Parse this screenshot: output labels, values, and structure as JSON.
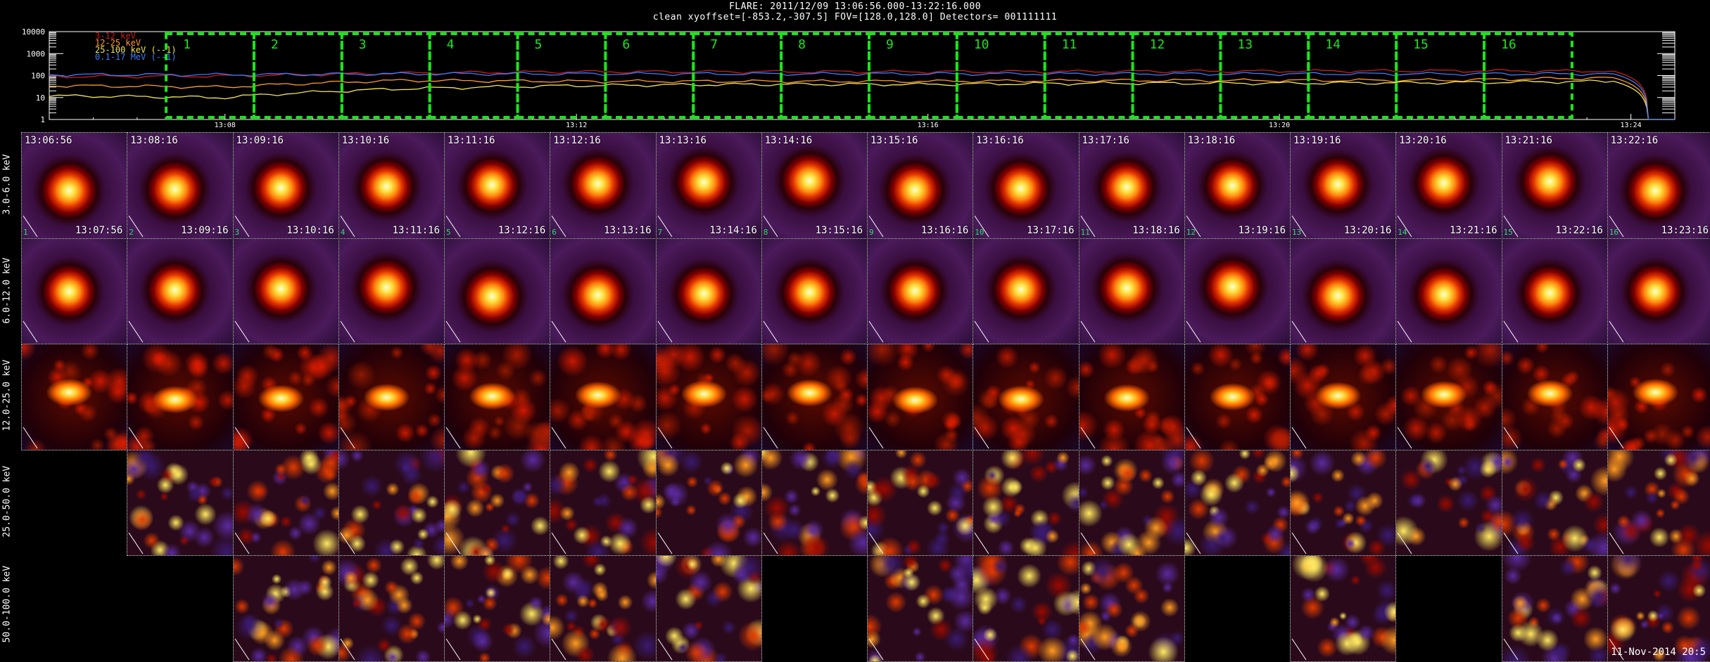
{
  "header": {
    "title": "FLARE: 2011/12/09 13:06:56.000-13:22:16.000",
    "subtitle": "clean   xyoffset=[-853.2,-307.5]   FOV=[128.0,128.0]   Detectors= 001111111"
  },
  "chart_data": {
    "type": "line",
    "title": "",
    "yscale": "log",
    "y_ticks": [
      "10000",
      "1000",
      "100",
      "10",
      "1"
    ],
    "x_ticks": [
      "13:08",
      "13:12",
      "13:16",
      "13:20",
      "13:24"
    ],
    "legend": [
      {
        "label": "3-12 keV",
        "color": "#d11a1a"
      },
      {
        "label": "12-25 keV",
        "color": "#ff9a2e"
      },
      {
        "label": "25-100 keV (--1)",
        "color": "#f2e45a"
      },
      {
        "label": "0.1-17 MeV (--1)",
        "color": "#3c7cff"
      }
    ],
    "x_minutes_from_1306": [
      0,
      2,
      4,
      6,
      8,
      10,
      12,
      14,
      16,
      17.8,
      18.2
    ],
    "series": [
      {
        "name": "3-12 keV",
        "color": "#d11a1a",
        "values": [
          90,
          95,
          130,
          150,
          150,
          150,
          155,
          160,
          165,
          160,
          1
        ]
      },
      {
        "name": "12-25 keV",
        "color": "#ff9a2e",
        "values": [
          35,
          30,
          60,
          55,
          55,
          55,
          60,
          60,
          62,
          80,
          1
        ]
      },
      {
        "name": "25-100 keV (--1)",
        "color": "#f2e45a",
        "values": [
          12,
          10,
          25,
          35,
          40,
          40,
          45,
          45,
          48,
          55,
          1
        ]
      },
      {
        "name": "0.1-17 MeV (--1)",
        "color": "#3c7cff",
        "values": [
          110,
          110,
          120,
          120,
          120,
          120,
          120,
          120,
          120,
          120,
          1
        ]
      }
    ],
    "intervals": [
      "1",
      "2",
      "3",
      "4",
      "5",
      "6",
      "7",
      "8",
      "9",
      "10",
      "11",
      "12",
      "13",
      "14",
      "15",
      "16"
    ]
  },
  "columns": [
    {
      "start": "13:06:56",
      "end": "13:07:56"
    },
    {
      "start": "13:08:16",
      "end": "13:09:16"
    },
    {
      "start": "13:09:16",
      "end": "13:10:16"
    },
    {
      "start": "13:10:16",
      "end": "13:11:16"
    },
    {
      "start": "13:11:16",
      "end": "13:12:16"
    },
    {
      "start": "13:12:16",
      "end": "13:13:16"
    },
    {
      "start": "13:13:16",
      "end": "13:14:16"
    },
    {
      "start": "13:14:16",
      "end": "13:15:16"
    },
    {
      "start": "13:15:16",
      "end": "13:16:16"
    },
    {
      "start": "13:16:16",
      "end": "13:17:16"
    },
    {
      "start": "13:17:16",
      "end": "13:18:16"
    },
    {
      "start": "13:18:16",
      "end": "13:19:16"
    },
    {
      "start": "13:19:16",
      "end": "13:20:16"
    },
    {
      "start": "13:20:16",
      "end": "13:21:16"
    },
    {
      "start": "13:21:16",
      "end": "13:22:16"
    },
    {
      "start": "13:22:16",
      "end": "13:23:16"
    }
  ],
  "rows": [
    {
      "label": "3.0-6.0 keV",
      "type": "smooth",
      "size": 0.32,
      "present": [
        1,
        1,
        1,
        1,
        1,
        1,
        1,
        1,
        1,
        1,
        1,
        1,
        1,
        1,
        1,
        1
      ]
    },
    {
      "label": "6.0-12.0 keV",
      "type": "smooth",
      "size": 0.28,
      "present": [
        1,
        1,
        1,
        1,
        1,
        1,
        1,
        1,
        1,
        1,
        1,
        1,
        1,
        1,
        1,
        1
      ]
    },
    {
      "label": "12.0-25.0 keV",
      "type": "grainy",
      "size": 0.2,
      "present": [
        1,
        1,
        1,
        1,
        1,
        1,
        1,
        1,
        1,
        1,
        1,
        1,
        1,
        1,
        1,
        1
      ]
    },
    {
      "label": "25.0-50.0 keV",
      "type": "noise",
      "size": 0.2,
      "present": [
        0,
        1,
        1,
        1,
        1,
        1,
        1,
        1,
        1,
        1,
        1,
        1,
        1,
        1,
        1,
        1
      ]
    },
    {
      "label": "50.0-100.0 keV",
      "type": "noise",
      "size": 0.2,
      "present": [
        0,
        0,
        1,
        1,
        1,
        1,
        1,
        0,
        1,
        1,
        1,
        0,
        1,
        0,
        1,
        1
      ]
    }
  ],
  "timestamp": "11-Nov-2014 20:5"
}
